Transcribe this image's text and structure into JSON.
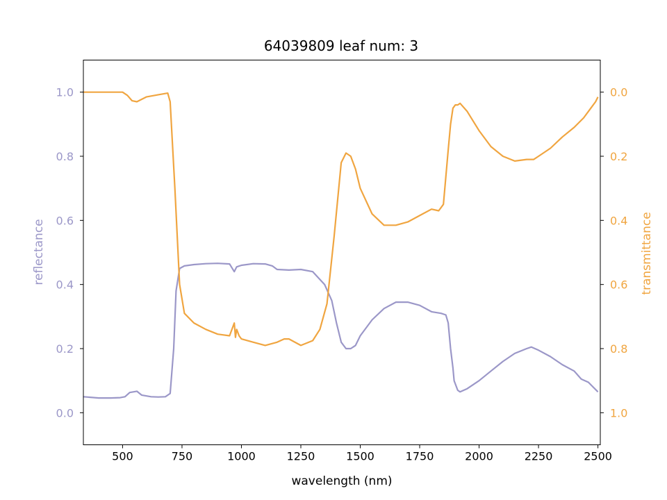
{
  "colors": {
    "reflectance": "#9b97c8",
    "transmittance": "#f0a540",
    "axis": "#000000"
  },
  "chart_data": {
    "type": "line",
    "title": "64039809 leaf num: 3",
    "xlabel": "wavelength (nm)",
    "ylabel_left": "reflectance",
    "ylabel_right": "transmittance",
    "xlim": [
      335,
      2510
    ],
    "ylim_left": [
      -0.1,
      1.1
    ],
    "ylim_right": [
      1.1,
      -0.1
    ],
    "right_axis_inverted": true,
    "grid": false,
    "x_ticks": [
      500,
      750,
      1000,
      1250,
      1500,
      1750,
      2000,
      2250,
      2500
    ],
    "x_tick_labels": [
      "500",
      "750",
      "1000",
      "1250",
      "1500",
      "1750",
      "2000",
      "2250",
      "2500"
    ],
    "y_left_ticks": [
      0.0,
      0.2,
      0.4,
      0.6,
      0.8,
      1.0
    ],
    "y_left_tick_labels": [
      "0.0",
      "0.2",
      "0.4",
      "0.6",
      "0.8",
      "1.0"
    ],
    "y_right_ticks": [
      0.0,
      0.2,
      0.4,
      0.6,
      0.8,
      1.0
    ],
    "y_right_tick_labels": [
      "0.0",
      "0.2",
      "0.4",
      "0.6",
      "0.8",
      "1.0"
    ],
    "series": [
      {
        "name": "reflectance",
        "axis": "left",
        "x": [
          335,
          400,
          450,
          490,
          510,
          530,
          560,
          580,
          620,
          650,
          680,
          700,
          715,
          725,
          740,
          760,
          800,
          850,
          900,
          950,
          970,
          980,
          1000,
          1050,
          1100,
          1130,
          1150,
          1200,
          1250,
          1300,
          1350,
          1380,
          1400,
          1420,
          1440,
          1460,
          1480,
          1500,
          1550,
          1600,
          1650,
          1700,
          1750,
          1800,
          1840,
          1860,
          1870,
          1880,
          1890,
          1895,
          1900,
          1910,
          1920,
          1950,
          2000,
          2050,
          2100,
          2150,
          2200,
          2220,
          2250,
          2300,
          2350,
          2400,
          2430,
          2460,
          2480,
          2500
        ],
        "y": [
          0.05,
          0.046,
          0.046,
          0.047,
          0.05,
          0.063,
          0.067,
          0.055,
          0.05,
          0.049,
          0.05,
          0.06,
          0.2,
          0.38,
          0.45,
          0.458,
          0.462,
          0.465,
          0.466,
          0.464,
          0.44,
          0.455,
          0.46,
          0.465,
          0.464,
          0.458,
          0.447,
          0.445,
          0.447,
          0.44,
          0.4,
          0.35,
          0.28,
          0.22,
          0.2,
          0.2,
          0.21,
          0.24,
          0.29,
          0.325,
          0.345,
          0.345,
          0.335,
          0.315,
          0.31,
          0.305,
          0.28,
          0.2,
          0.14,
          0.1,
          0.09,
          0.07,
          0.065,
          0.075,
          0.1,
          0.13,
          0.16,
          0.185,
          0.2,
          0.205,
          0.195,
          0.175,
          0.15,
          0.13,
          0.105,
          0.095,
          0.08,
          0.065
        ]
      },
      {
        "name": "transmittance",
        "axis": "right",
        "x": [
          335,
          400,
          450,
          500,
          520,
          540,
          560,
          600,
          650,
          690,
          700,
          720,
          740,
          760,
          800,
          850,
          900,
          950,
          970,
          975,
          980,
          990,
          1000,
          1050,
          1100,
          1150,
          1180,
          1200,
          1250,
          1300,
          1330,
          1360,
          1390,
          1420,
          1440,
          1460,
          1480,
          1500,
          1550,
          1600,
          1650,
          1700,
          1750,
          1800,
          1830,
          1850,
          1870,
          1880,
          1890,
          1900,
          1910,
          1920,
          1950,
          2000,
          2050,
          2100,
          2150,
          2200,
          2230,
          2250,
          2300,
          2350,
          2400,
          2440,
          2470,
          2490,
          2500
        ],
        "y": [
          0.0,
          0.0,
          0.0,
          0.0,
          0.01,
          0.027,
          0.03,
          0.015,
          0.008,
          0.003,
          0.03,
          0.3,
          0.6,
          0.69,
          0.72,
          0.74,
          0.755,
          0.76,
          0.72,
          0.765,
          0.74,
          0.76,
          0.77,
          0.78,
          0.79,
          0.78,
          0.77,
          0.77,
          0.79,
          0.775,
          0.74,
          0.66,
          0.45,
          0.22,
          0.19,
          0.2,
          0.24,
          0.3,
          0.38,
          0.415,
          0.415,
          0.405,
          0.385,
          0.365,
          0.37,
          0.35,
          0.18,
          0.1,
          0.05,
          0.04,
          0.04,
          0.035,
          0.06,
          0.12,
          0.17,
          0.2,
          0.215,
          0.21,
          0.21,
          0.2,
          0.175,
          0.14,
          0.11,
          0.08,
          0.05,
          0.03,
          0.015
        ]
      }
    ]
  }
}
